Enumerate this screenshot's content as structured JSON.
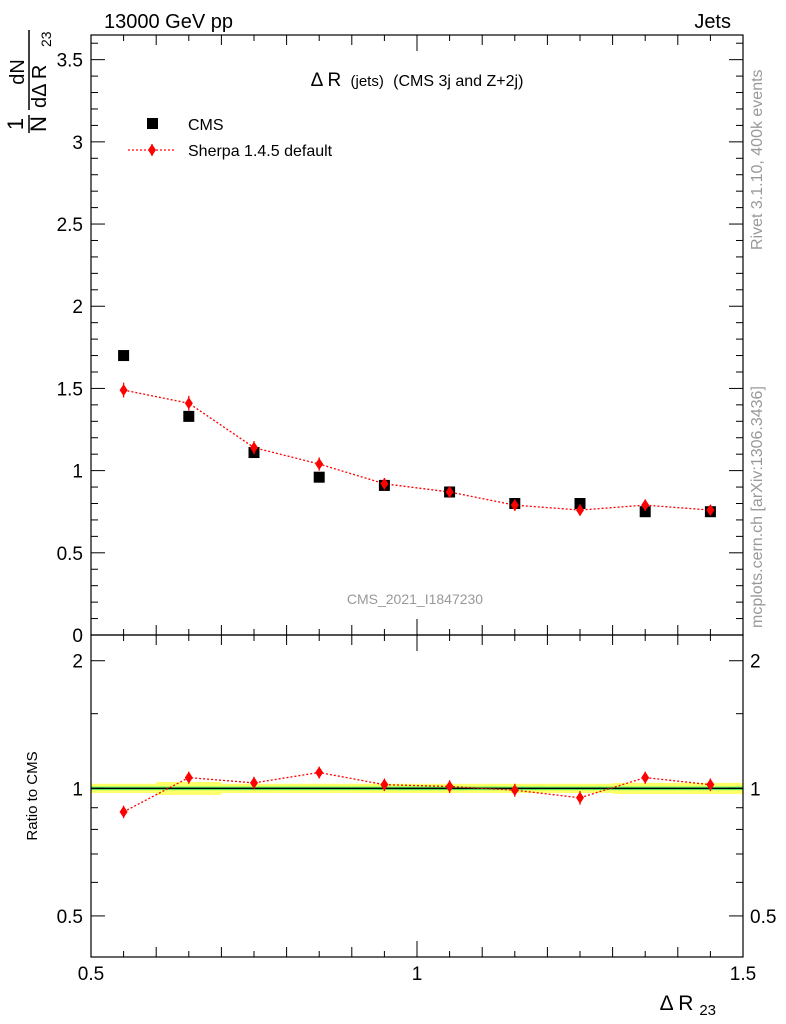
{
  "header": {
    "left": "13000 GeV pp",
    "right": "Jets"
  },
  "side_labels": {
    "rivet": "Rivet 3.1.10,  400k events",
    "mcplots": "mcplots.cern.ch [arXiv:1306.3436]"
  },
  "chart_data": [
    {
      "type": "scatter",
      "panel": "main",
      "title": "Δ R (jets) (CMS 3j and Z+2j)",
      "title_main": "Δ R",
      "title_small": "(jets)",
      "title_rest": "(CMS 3j and Z+2j)",
      "watermark": "CMS_2021_I1847230",
      "ylabel": {
        "frac_num": "1",
        "frac_den": "N",
        "dN": "dN",
        "dDR": "dΔ R",
        "sub": "23"
      },
      "xlim": [
        0.5,
        1.5
      ],
      "ylim": [
        0,
        3.65
      ],
      "yticks": [
        0,
        0.5,
        1,
        1.5,
        2,
        2.5,
        3,
        3.5
      ],
      "ytick_labels": [
        "0",
        "0.5",
        "1",
        "1.5",
        "2",
        "2.5",
        "3",
        "3.5"
      ],
      "bin_edges": [
        0.5,
        0.6,
        0.7,
        0.8,
        0.9,
        1.0,
        1.1,
        1.2,
        1.3,
        1.4,
        1.5
      ],
      "legend": [
        {
          "name": "CMS",
          "marker": "square",
          "color": "#000000"
        },
        {
          "name": "Sherpa 1.4.5 default",
          "marker": "diamond",
          "color": "#ff0000"
        }
      ],
      "series": [
        {
          "name": "CMS",
          "x": [
            0.55,
            0.65,
            0.75,
            0.85,
            0.95,
            1.05,
            1.15,
            1.25,
            1.35,
            1.45
          ],
          "values": [
            1.7,
            1.33,
            1.11,
            0.96,
            0.91,
            0.87,
            0.8,
            0.8,
            0.75,
            0.75
          ],
          "errors": [
            0.015,
            0.015,
            0.012,
            0.012,
            0.012,
            0.012,
            0.012,
            0.012,
            0.012,
            0.012
          ]
        },
        {
          "name": "Sherpa 1.4.5 default",
          "x": [
            0.55,
            0.65,
            0.75,
            0.85,
            0.95,
            1.05,
            1.15,
            1.25,
            1.35,
            1.45
          ],
          "values": [
            1.49,
            1.41,
            1.14,
            1.04,
            0.92,
            0.87,
            0.79,
            0.76,
            0.79,
            0.76
          ],
          "errors": [
            0.045,
            0.045,
            0.04,
            0.04,
            0.035,
            0.035,
            0.035,
            0.035,
            0.035,
            0.03
          ]
        }
      ]
    },
    {
      "type": "scatter",
      "panel": "ratio",
      "ylabel": "Ratio to CMS",
      "xlabel": {
        "main": "Δ R",
        "sub": "23"
      },
      "xlim": [
        0.5,
        1.5
      ],
      "ylim": [
        0.4,
        2.3
      ],
      "scale": "log",
      "xticks": [
        0.5,
        1,
        1.5
      ],
      "xtick_labels": [
        "0.5",
        "1",
        "1.5"
      ],
      "yticks": [
        0.5,
        1,
        2
      ],
      "ytick_labels": [
        "0.5",
        "1",
        "2"
      ],
      "band_inner": [
        0.01,
        0.01,
        0.01,
        0.01,
        0.01,
        0.01,
        0.01,
        0.01,
        0.01,
        0.01
      ],
      "band_outer": [
        0.025,
        0.035,
        0.025,
        0.025,
        0.025,
        0.025,
        0.025,
        0.025,
        0.03,
        0.03
      ],
      "series": [
        {
          "name": "Sherpa 1.4.5 default",
          "x": [
            0.55,
            0.65,
            0.75,
            0.85,
            0.95,
            1.05,
            1.15,
            1.25,
            1.35,
            1.45
          ],
          "values": [
            0.88,
            1.06,
            1.03,
            1.09,
            1.02,
            1.01,
            0.99,
            0.95,
            1.06,
            1.02
          ],
          "errors": [
            0.03,
            0.035,
            0.035,
            0.035,
            0.035,
            0.035,
            0.035,
            0.035,
            0.035,
            0.035
          ]
        }
      ]
    }
  ],
  "colors": {
    "data": "#000000",
    "mc": "#ff0000",
    "band_inner": "#66ff66",
    "band_outer": "#ffff66",
    "side_label": "#999999",
    "watermark": "#999999"
  }
}
